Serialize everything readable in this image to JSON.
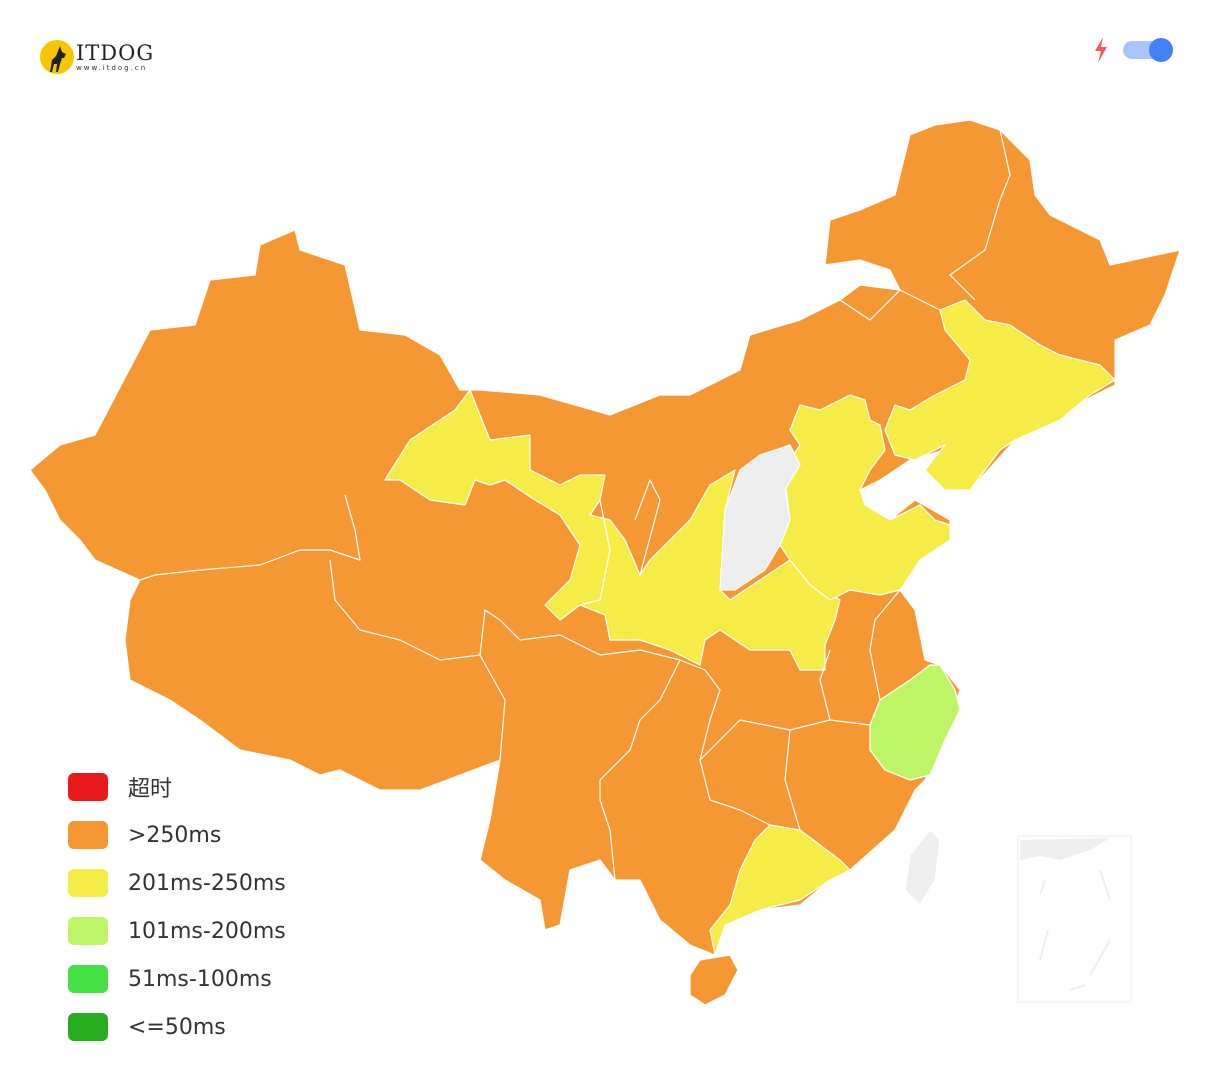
{
  "logo": {
    "text": "ITDOG",
    "subtext": "www.itdog.cn"
  },
  "toolbar": {
    "bolt_icon": "lightning-icon",
    "toggle_on": true,
    "bolt_color": "#f55a5a",
    "toggle_color": "#4281f8"
  },
  "legend": [
    {
      "label": "超时",
      "color": "#e8191b"
    },
    {
      "label": ">250ms",
      "color": "#f59834"
    },
    {
      "label": "201ms-250ms",
      "color": "#f5ec47"
    },
    {
      "label": "101ms-200ms",
      "color": "#bef566"
    },
    {
      "label": "51ms-100ms",
      "color": "#45e043"
    },
    {
      "label": "<=50ms",
      "color": "#26ae20"
    }
  ],
  "no_data_color": "#eeeeee"
}
